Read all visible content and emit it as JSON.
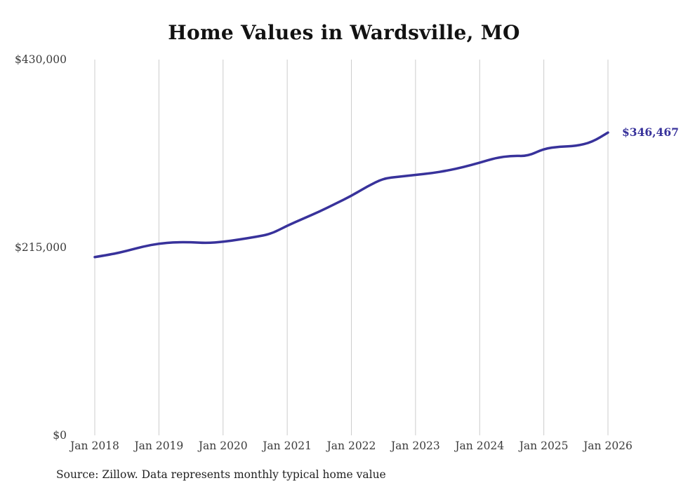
{
  "chart": {
    "title": "Home Values in Wardsville, MO",
    "end_label": "$346,467",
    "source": "Source: Zillow. Data represents monthly typical home value",
    "y_tick_labels": [
      "$430,000",
      "$215,000",
      "$0"
    ],
    "line_color": "#38329b",
    "grid_color": "#cccccc"
  },
  "chart_data": {
    "type": "line",
    "title": "Home Values in Wardsville, MO",
    "series_name": "Typical home value",
    "xlabel": "",
    "ylabel": "",
    "ylim": [
      0,
      430000
    ],
    "yticks": [
      430000,
      215000,
      0
    ],
    "xticks": [
      "Jan 2018",
      "Jan 2019",
      "Jan 2020",
      "Jan 2021",
      "Jan 2022",
      "Jan 2023",
      "Jan 2024",
      "Jan 2025",
      "Jan 2026"
    ],
    "grid": "vertical-only",
    "legend": "none",
    "x": [
      "2018-01",
      "2018-04",
      "2018-07",
      "2018-10",
      "2019-01",
      "2019-04",
      "2019-07",
      "2019-10",
      "2020-01",
      "2020-04",
      "2020-07",
      "2020-10",
      "2021-01",
      "2021-04",
      "2021-07",
      "2021-10",
      "2022-01",
      "2022-04",
      "2022-07",
      "2022-10",
      "2023-01",
      "2023-04",
      "2023-07",
      "2023-10",
      "2024-01",
      "2024-04",
      "2024-07",
      "2024-10",
      "2025-01",
      "2025-04",
      "2025-07",
      "2025-10",
      "2026-01"
    ],
    "values": [
      204000,
      207000,
      211000,
      216000,
      219500,
      221000,
      221000,
      220000,
      221500,
      224000,
      227000,
      230500,
      240000,
      248000,
      256000,
      265000,
      274000,
      285000,
      294000,
      296000,
      298000,
      300000,
      303000,
      307000,
      312000,
      317500,
      320000,
      319500,
      328000,
      330500,
      331000,
      335500,
      346467
    ],
    "final_value": 346467,
    "final_value_label": "$346,467"
  }
}
